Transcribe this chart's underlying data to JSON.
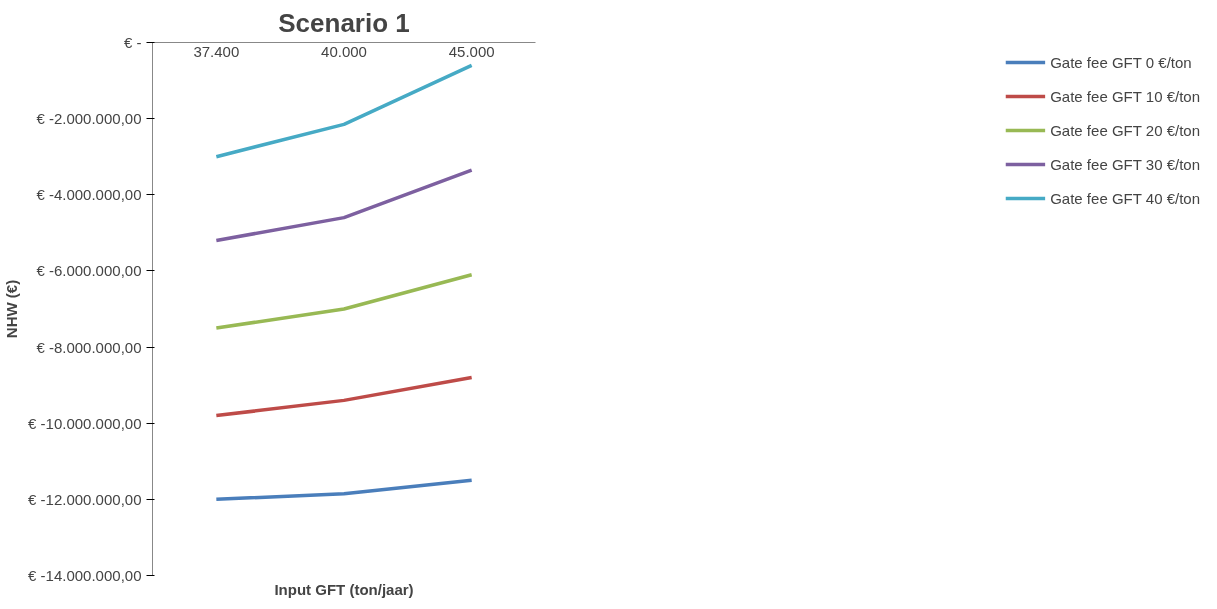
{
  "chart_data": {
    "type": "line",
    "title": "Scenario 1",
    "xlabel": "Input GFT (ton/jaar)",
    "ylabel": "NHW (€)",
    "categories": [
      "37.400",
      "40.000",
      "45.000"
    ],
    "series": [
      {
        "name": "Gate fee GFT 0 €/ton",
        "color": "#4a7ebb",
        "values": [
          -12000000,
          -11850000,
          -11500000
        ]
      },
      {
        "name": "Gate fee GFT 10 €/ton",
        "color": "#be4b48",
        "values": [
          -9800000,
          -9400000,
          -8800000
        ]
      },
      {
        "name": "Gate fee GFT 20 €/ton",
        "color": "#98b954",
        "values": [
          -7500000,
          -7000000,
          -6100000
        ]
      },
      {
        "name": "Gate fee GFT 30 €/ton",
        "color": "#7d60a0",
        "values": [
          -5200000,
          -4600000,
          -3350000
        ]
      },
      {
        "name": "Gate fee GFT 40 €/ton",
        "color": "#46aac5",
        "values": [
          -3000000,
          -2150000,
          -600000
        ]
      }
    ],
    "ylim": [
      -14000000,
      0
    ],
    "yticks": [
      {
        "value": 0,
        "label": "€ -"
      },
      {
        "value": -2000000,
        "label": "€ -2.000.000,00"
      },
      {
        "value": -4000000,
        "label": "€ -4.000.000,00"
      },
      {
        "value": -6000000,
        "label": "€ -6.000.000,00"
      },
      {
        "value": -8000000,
        "label": "€ -8.000.000,00"
      },
      {
        "value": -10000000,
        "label": "€ -10.000.000,00"
      },
      {
        "value": -12000000,
        "label": "€ -12.000.000,00"
      },
      {
        "value": -14000000,
        "label": "€ -14.000.000,00"
      }
    ],
    "grid": false,
    "legend": "right",
    "marker": "none",
    "line_style": "solid"
  }
}
